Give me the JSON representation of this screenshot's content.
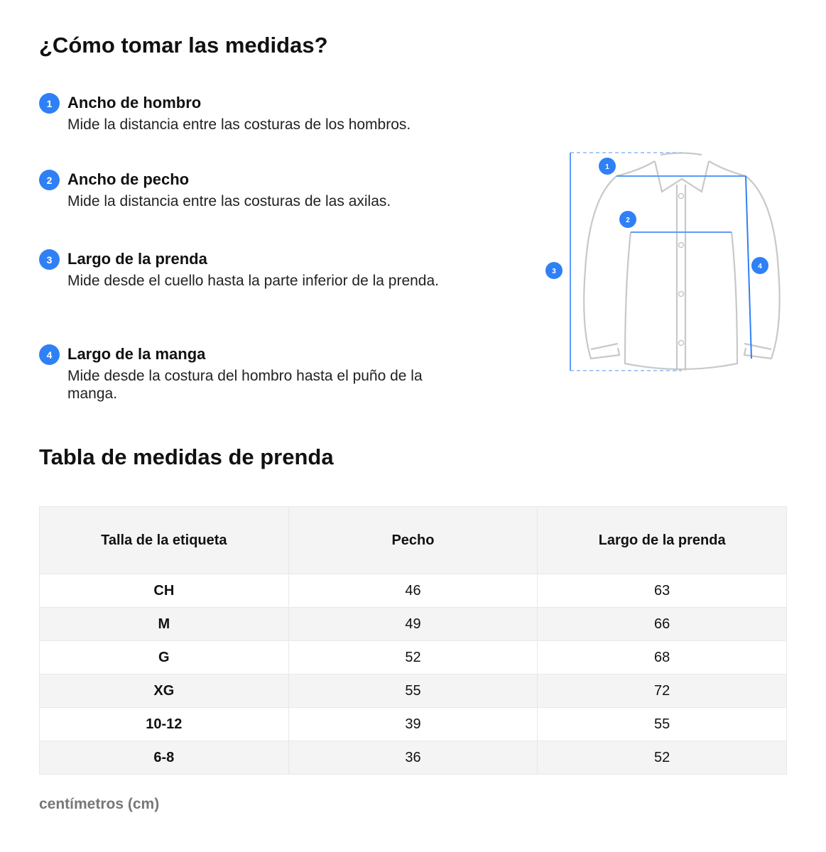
{
  "guide": {
    "title": "¿Cómo tomar las medidas?",
    "items": [
      {
        "number": "1",
        "title": "Ancho de hombro",
        "description": "Mide la distancia entre las costuras de los hombros."
      },
      {
        "number": "2",
        "title": "Ancho de pecho",
        "description": "Mide la distancia entre las costuras de las axilas."
      },
      {
        "number": "3",
        "title": "Largo de la prenda",
        "description": "Mide desde el cuello hasta la parte inferior de la prenda."
      },
      {
        "number": "4",
        "title": "Largo de la manga",
        "description": "Mide desde la costura del hombro hasta el puño de la manga."
      }
    ],
    "illustration": {
      "badges": [
        "1",
        "2",
        "3",
        "4"
      ],
      "accent_color": "#2f80f5",
      "outline_color": "#c8c8c8"
    }
  },
  "size_table": {
    "title": "Tabla de medidas de prenda",
    "headers": [
      "Talla de la etiqueta",
      "Pecho",
      "Largo de la prenda"
    ],
    "rows": [
      [
        "CH",
        "46",
        "63"
      ],
      [
        "M",
        "49",
        "66"
      ],
      [
        "G",
        "52",
        "68"
      ],
      [
        "XG",
        "55",
        "72"
      ],
      [
        "10-12",
        "39",
        "55"
      ],
      [
        "6-8",
        "36",
        "52"
      ]
    ],
    "unit": "centímetros (cm)"
  }
}
